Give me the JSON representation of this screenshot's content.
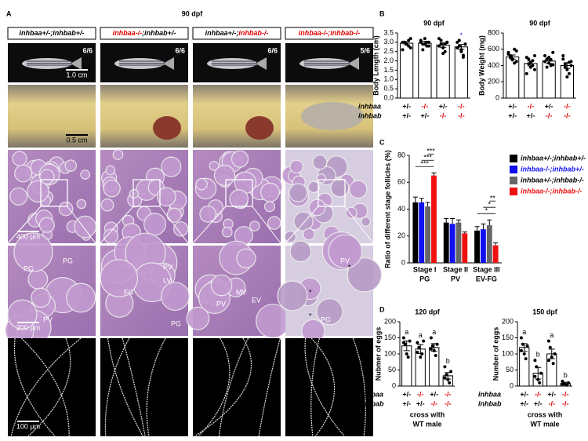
{
  "figure": {
    "panel_labels": [
      "A",
      "B",
      "C",
      "D"
    ],
    "title": "90 dpf",
    "columns": [
      {
        "parts": [
          {
            "text": "inhbaa+/-;",
            "color": "#000000"
          },
          {
            "text": "inhbab+/-",
            "color": "#000000"
          }
        ],
        "fraction": "6/6"
      },
      {
        "parts": [
          {
            "text": "inhbaa-/-",
            "color": "#e00000"
          },
          {
            "text": ";inhbab+/-",
            "color": "#000000"
          }
        ],
        "fraction": "6/6"
      },
      {
        "parts": [
          {
            "text": "inhbaa+/-;",
            "color": "#000000"
          },
          {
            "text": "inhbab-/-",
            "color": "#e00000"
          }
        ],
        "fraction": "6/6"
      },
      {
        "parts": [
          {
            "text": "inhbaa-/-;",
            "color": "#e00000"
          },
          {
            "text": "inhbab-/-",
            "color": "#e00000"
          }
        ],
        "fraction": "5/6"
      }
    ],
    "scale_bars": [
      "1.0 cm",
      "0.5 cm",
      "400 µm",
      "200 µm",
      "100 µm"
    ],
    "tissue_labels": [
      [
        "PG",
        "PG",
        "PV"
      ],
      [
        "PV",
        "FG",
        "LV",
        "PG"
      ],
      [
        "PV",
        "EV",
        "MV"
      ],
      [
        "PV",
        "PG",
        "*",
        "*",
        "*"
      ]
    ]
  },
  "chart_data": [
    {
      "type": "bar",
      "title": "90 dpf",
      "ylabel": "Body Length (cm)",
      "values": [
        2.95,
        2.95,
        2.85,
        2.75
      ],
      "errors": [
        0.08,
        0.1,
        0.12,
        0.13
      ],
      "points": [
        [
          3.0,
          3.0,
          2.9,
          2.8,
          3.2,
          2.6,
          3.0,
          2.9,
          3.1,
          2.7
        ],
        [
          3.0,
          2.9,
          3.2,
          2.8,
          3.0,
          3.1,
          2.6,
          2.9,
          3.0,
          2.8
        ],
        [
          3.2,
          2.9,
          2.7,
          2.5,
          3.0,
          2.8,
          3.1,
          2.4,
          2.9,
          3.0
        ],
        [
          3.0,
          2.8,
          2.5,
          2.3,
          2.9,
          2.7,
          3.1,
          2.6,
          2.2,
          2.9
        ]
      ],
      "color": "#ffffff",
      "edgecolor": "#000000",
      "point_color": "#000000",
      "ylim": [
        0,
        3.5
      ],
      "yticks": [
        {
          "value": 0,
          "label": "0.0"
        },
        0.5,
        {
          "value": 1,
          "label": "1.0"
        },
        1.5,
        {
          "value": 2,
          "label": "2.0"
        },
        2.5,
        {
          "value": 3,
          "label": "3.0"
        },
        3.5
      ],
      "annotations": [
        {
          "index": 3,
          "text": "*",
          "color": "#2233dd"
        }
      ],
      "genotype_rows": [
        {
          "name": "inhbaa",
          "labels": [
            "+/-",
            "-/-",
            "+/-",
            "-/-"
          ],
          "colors": [
            "#000000",
            "#e00000",
            "#000000",
            "#e00000"
          ]
        },
        {
          "name": "inhbab",
          "labels": [
            "+/-",
            "+/-",
            "-/-",
            "-/-"
          ],
          "colors": [
            "#000000",
            "#000000",
            "#e00000",
            "#e00000"
          ]
        }
      ]
    },
    {
      "type": "bar",
      "title": "90 dpf",
      "ylabel": "Body Weight (mg)",
      "values": [
        505,
        425,
        455,
        400
      ],
      "errors": [
        25,
        30,
        30,
        35
      ],
      "points": [
        [
          560,
          520,
          480,
          600,
          450,
          540,
          500,
          470,
          430,
          580
        ],
        [
          500,
          420,
          380,
          460,
          350,
          300,
          480,
          440,
          400,
          520
        ],
        [
          520,
          480,
          430,
          400,
          560,
          450,
          380,
          500,
          470,
          410
        ],
        [
          480,
          420,
          350,
          300,
          450,
          520,
          380,
          260,
          440,
          400
        ]
      ],
      "color": "#ffffff",
      "edgecolor": "#000000",
      "point_color": "#000000",
      "ylim": [
        0,
        800
      ],
      "yticks": [
        0,
        200,
        400,
        600,
        800
      ],
      "genotype_rows": [
        {
          "labels": [
            "+/-",
            "-/-",
            "+/-",
            "-/-"
          ],
          "colors": [
            "#000000",
            "#e00000",
            "#000000",
            "#e00000"
          ]
        },
        {
          "labels": [
            "+/-",
            "+/-",
            "-/-",
            "-/-"
          ],
          "colors": [
            "#000000",
            "#000000",
            "#e00000",
            "#e00000"
          ]
        }
      ]
    },
    {
      "type": "bar",
      "ylabel": "Ratio of different stage follicles (%)",
      "categories": [
        "Stage I",
        "Stage II",
        "Stage III"
      ],
      "group_labels": [
        "PG",
        "PV",
        "EV-FG"
      ],
      "series": [
        {
          "name": "inhbaa+/-;inhbab+/-",
          "color": "#000000",
          "values": [
            45,
            30,
            24
          ],
          "errors": [
            4,
            3,
            3
          ]
        },
        {
          "name": "inhbaa-/-;inhbab+/-",
          "color": "#1010f0",
          "values": [
            45,
            29,
            25
          ],
          "errors": [
            3,
            4,
            4
          ]
        },
        {
          "name": "inhbaa+/-;inhbab-/-",
          "color": "#666666",
          "values": [
            42,
            30,
            28
          ],
          "errors": [
            3,
            2,
            4
          ]
        },
        {
          "name": "inhbaa-/-;inhbab-/-",
          "color": "#f01010",
          "values": [
            65,
            22,
            13
          ],
          "errors": [
            2,
            1,
            2
          ]
        }
      ],
      "ylim": [
        0,
        80
      ],
      "yticks": [
        0,
        20,
        40,
        60,
        80
      ],
      "legend": "right",
      "annotations": [
        {
          "text": "***",
          "category": 0,
          "from": 0,
          "to": 3
        },
        {
          "text": "***",
          "category": 0,
          "from": 1,
          "to": 3
        },
        {
          "text": "***",
          "category": 0,
          "from": 2,
          "to": 3
        },
        {
          "text": "*",
          "category": 2,
          "from": 0,
          "to": 3
        },
        {
          "text": "*",
          "category": 2,
          "from": 1,
          "to": 3
        },
        {
          "text": "**",
          "category": 2,
          "from": 2,
          "to": 3
        }
      ]
    },
    {
      "type": "bar",
      "title": "120 dpf",
      "ylabel": "Nubmer of eggs",
      "values": [
        125,
        115,
        120,
        32
      ],
      "errors": [
        15,
        14,
        12,
        10
      ],
      "points": [
        [
          150,
          130,
          100,
          90,
          140,
          135
        ],
        [
          135,
          120,
          90,
          100,
          140,
          105
        ],
        [
          150,
          125,
          110,
          95,
          130,
          115
        ],
        [
          60,
          35,
          20,
          10,
          45,
          25
        ]
      ],
      "letters": [
        "a",
        "a",
        "a",
        "b"
      ],
      "color": "#ffffff",
      "edgecolor": "#000000",
      "point_color": "#000000",
      "ylim": [
        0,
        200
      ],
      "yticks": [
        0,
        50,
        100,
        150,
        200
      ],
      "xlabel_lines": [
        "cross with",
        "WT male"
      ],
      "genotype_rows": [
        {
          "name": "inhbaa",
          "labels": [
            "+/-",
            "-/-",
            "+/-",
            "-/-"
          ],
          "colors": [
            "#000000",
            "#e00000",
            "#000000",
            "#e00000"
          ]
        },
        {
          "name": "inhbab",
          "labels": [
            "+/-",
            "+/-",
            "-/-",
            "-/-"
          ],
          "colors": [
            "#000000",
            "#000000",
            "#e00000",
            "#e00000"
          ]
        }
      ]
    },
    {
      "type": "bar",
      "title": "150 dpf",
      "ylabel": "Number of eggs",
      "values": [
        120,
        40,
        100,
        8
      ],
      "errors": [
        12,
        18,
        15,
        4
      ],
      "points": [
        [
          150,
          130,
          100,
          85,
          125,
          110
        ],
        [
          80,
          60,
          20,
          10,
          40,
          30
        ],
        [
          140,
          120,
          90,
          70,
          100,
          80
        ],
        [
          15,
          8,
          5,
          3,
          10,
          6
        ]
      ],
      "letters": [
        "a",
        "b",
        "a",
        "b"
      ],
      "color": "#ffffff",
      "edgecolor": "#000000",
      "point_color": "#000000",
      "ylim": [
        0,
        200
      ],
      "yticks": [
        0,
        50,
        100,
        150,
        200
      ],
      "xlabel_lines": [
        "cross with",
        "WT male"
      ],
      "genotype_rows": [
        {
          "name": "inhbaa",
          "labels": [
            "+/-",
            "-/-",
            "+/-",
            "-/-"
          ],
          "colors": [
            "#000000",
            "#e00000",
            "#000000",
            "#e00000"
          ]
        },
        {
          "name": "inhbab",
          "labels": [
            "+/-",
            "+/-",
            "-/-",
            "-/-"
          ],
          "colors": [
            "#000000",
            "#000000",
            "#e00000",
            "#e00000"
          ]
        }
      ]
    }
  ]
}
